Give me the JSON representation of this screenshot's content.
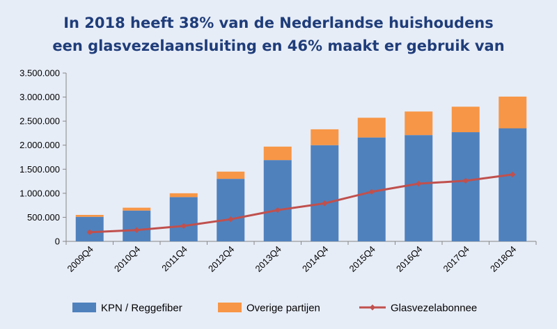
{
  "chart_data": {
    "type": "bar",
    "stacked": true,
    "title": "In 2018 heeft 38% van de Nederlandse huishoudens",
    "subtitle": "een glasvezelaansluiting en 46% maakt er gebruik van",
    "categories": [
      "2009Q4",
      "2010Q4",
      "2011Q4",
      "2012Q4",
      "2013Q4",
      "2014Q4",
      "2015Q4",
      "2016Q4",
      "2017Q4",
      "2018Q4"
    ],
    "y_ticks": [
      "0",
      "500.000",
      "1.000.000",
      "1.500.000",
      "2.000.000",
      "2.500.000",
      "3.000.000",
      "3.500.000"
    ],
    "ylim": [
      0,
      3500000
    ],
    "series": [
      {
        "name": "KPN / Reggefiber",
        "kind": "bar",
        "color": "#4f81bd",
        "values": [
          510000,
          640000,
          920000,
          1300000,
          1690000,
          2000000,
          2160000,
          2210000,
          2270000,
          2350000
        ]
      },
      {
        "name": "Overige partijen",
        "kind": "bar",
        "color": "#f79646",
        "values": [
          40000,
          60000,
          80000,
          150000,
          280000,
          330000,
          410000,
          490000,
          530000,
          660000
        ]
      },
      {
        "name": "Glasvezelabonnee",
        "kind": "line",
        "color": "#c0504d",
        "values": [
          190000,
          235000,
          320000,
          460000,
          650000,
          790000,
          1030000,
          1200000,
          1260000,
          1390000
        ]
      }
    ],
    "legend_position": "bottom",
    "grid": false
  }
}
